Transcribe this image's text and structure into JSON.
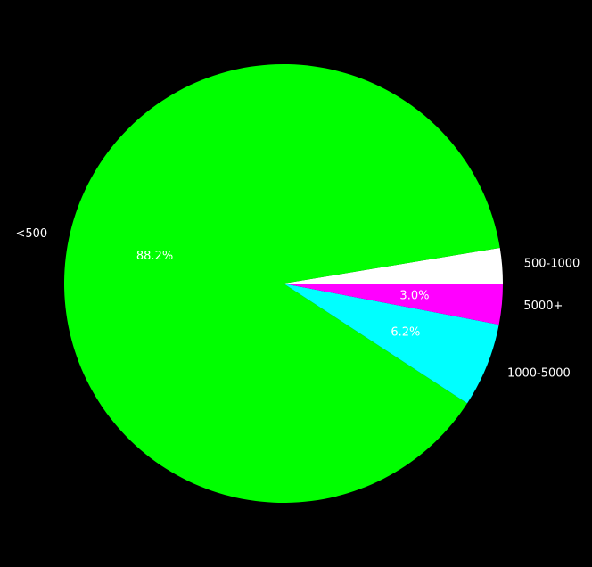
{
  "chart_data": {
    "type": "pie",
    "title": "",
    "start_angle_deg": 0,
    "direction": "counterclockwise",
    "slices": [
      {
        "label": "500-1000",
        "value": 2.6,
        "pct_label": "",
        "color": "#ffffff"
      },
      {
        "label": "<500",
        "value": 88.2,
        "pct_label": "88.2%",
        "color": "#00ff00"
      },
      {
        "label": "1000-5000",
        "value": 6.2,
        "pct_label": "6.2%",
        "color": "#00ffff"
      },
      {
        "label": "5000+",
        "value": 3.0,
        "pct_label": "3.0%",
        "color": "#ff00ff"
      }
    ],
    "background": "#000000"
  }
}
